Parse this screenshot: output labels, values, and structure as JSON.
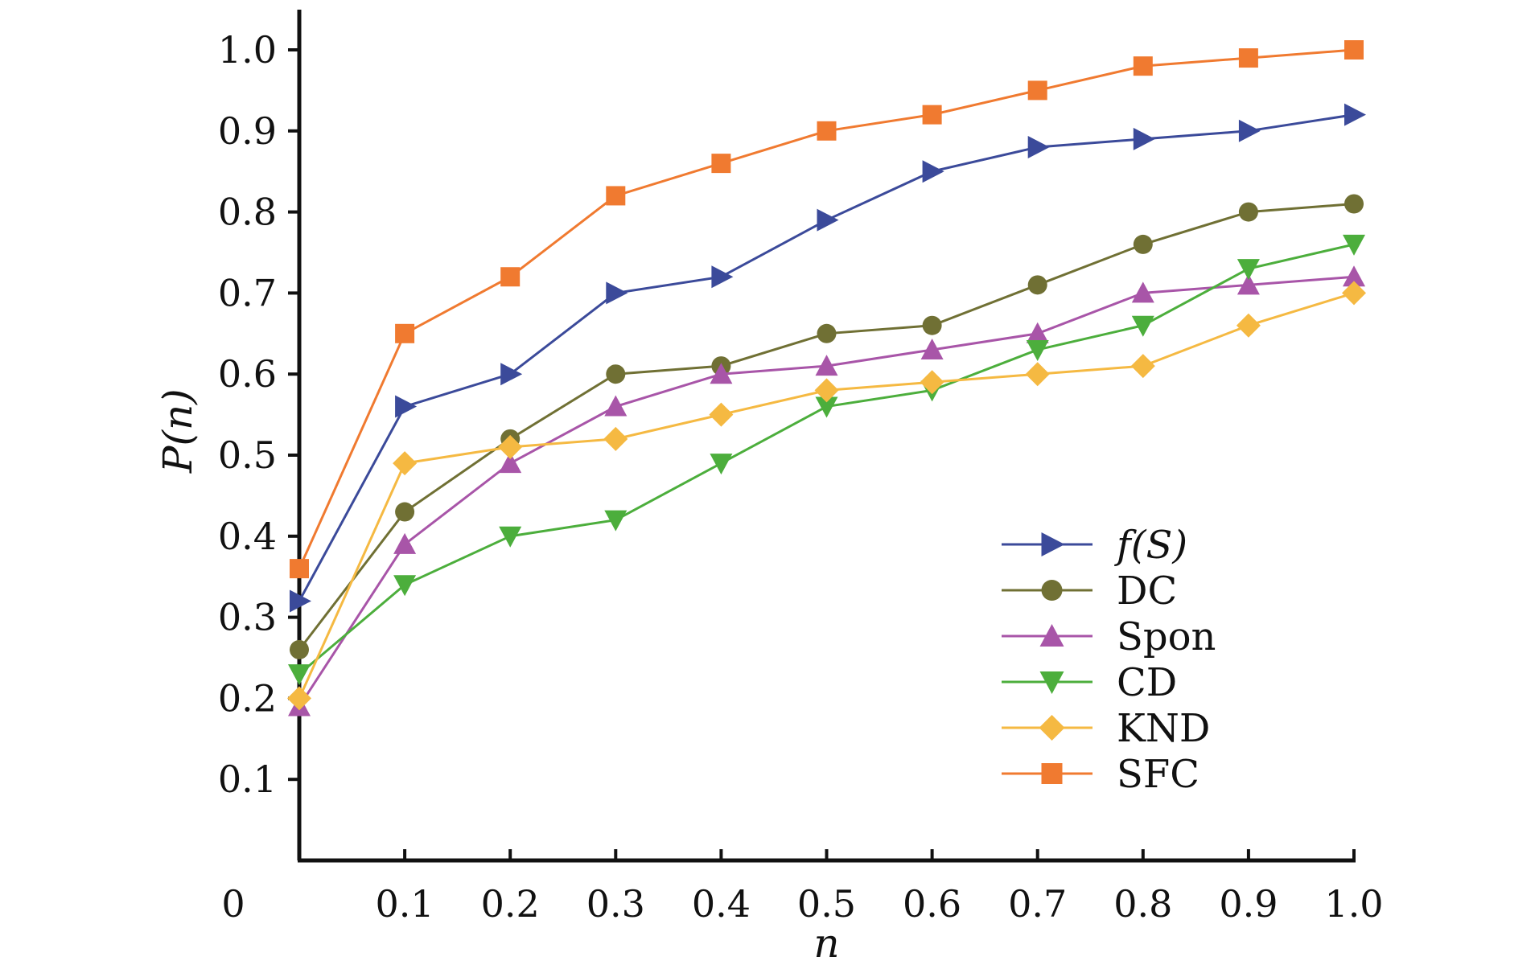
{
  "chart_data": {
    "type": "line",
    "title": "",
    "xlabel": "n",
    "ylabel": "P(n)",
    "xlim": [
      0,
      1.0
    ],
    "ylim": [
      0,
      1.05
    ],
    "x": [
      0,
      0.1,
      0.2,
      0.3,
      0.4,
      0.5,
      0.6,
      0.7,
      0.8,
      0.9,
      1.0
    ],
    "x_ticks": [
      "0",
      "0.1",
      "0.2",
      "0.3",
      "0.4",
      "0.5",
      "0.6",
      "0.7",
      "0.8",
      "0.9",
      "1.0"
    ],
    "y_ticks": [
      "0.1",
      "0.2",
      "0.3",
      "0.4",
      "0.5",
      "0.6",
      "0.7",
      "0.8",
      "0.9",
      "1.0"
    ],
    "y_tick_values": [
      0.1,
      0.2,
      0.3,
      0.4,
      0.5,
      0.6,
      0.7,
      0.8,
      0.9,
      1.0
    ],
    "grid": false,
    "legend_position": "lower-right",
    "series": [
      {
        "name": "f(S)",
        "marker": "triangle-right",
        "color": "#3b4a9a",
        "values": [
          0.32,
          0.56,
          0.6,
          0.7,
          0.72,
          0.79,
          0.85,
          0.88,
          0.89,
          0.9,
          0.92
        ]
      },
      {
        "name": "DC",
        "marker": "circle",
        "color": "#707034",
        "values": [
          0.26,
          0.43,
          0.52,
          0.6,
          0.61,
          0.65,
          0.66,
          0.71,
          0.76,
          0.8,
          0.81
        ]
      },
      {
        "name": "Spon",
        "marker": "triangle-up",
        "color": "#a855a8",
        "values": [
          0.19,
          0.39,
          0.49,
          0.56,
          0.6,
          0.61,
          0.63,
          0.65,
          0.7,
          0.71,
          0.72
        ]
      },
      {
        "name": "CD",
        "marker": "triangle-down",
        "color": "#4cae3c",
        "values": [
          0.23,
          0.34,
          0.4,
          0.42,
          0.49,
          0.56,
          0.58,
          0.63,
          0.66,
          0.73,
          0.76
        ]
      },
      {
        "name": "KND",
        "marker": "diamond",
        "color": "#f5b942",
        "values": [
          0.2,
          0.49,
          0.51,
          0.52,
          0.55,
          0.58,
          0.59,
          0.6,
          0.61,
          0.66,
          0.7
        ]
      },
      {
        "name": "SFC",
        "marker": "square",
        "color": "#f07a30",
        "values": [
          0.36,
          0.65,
          0.72,
          0.82,
          0.86,
          0.9,
          0.92,
          0.95,
          0.98,
          0.99,
          1.0
        ]
      }
    ]
  }
}
